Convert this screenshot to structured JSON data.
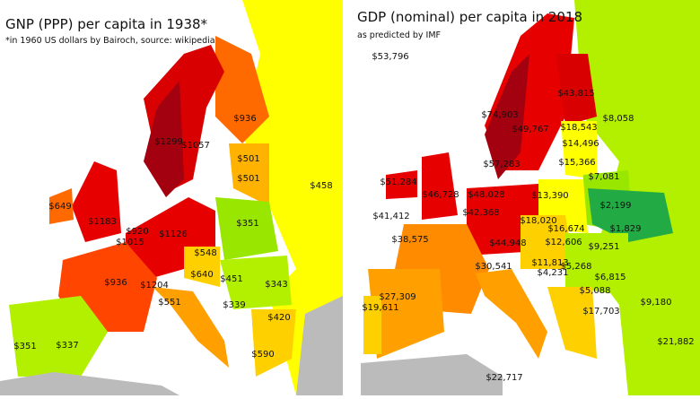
{
  "maps": [
    {
      "title": "GNP (PPP) per capita in 1938*",
      "subtitle": "*in 1960 US dollars by Bairoch, source: wikipedia",
      "labels": [
        "$458",
        "$936",
        "$1299",
        "$1057",
        "$501",
        "$501",
        "$1183",
        "$649",
        "$920",
        "$1015",
        "$1126",
        "$351",
        "$548",
        "$451",
        "$640",
        "$1204",
        "$936",
        "$551",
        "$343",
        "$339",
        "$420",
        "$351",
        "$337",
        "$590"
      ]
    },
    {
      "title": "GDP (nominal) per capita in 2018",
      "subtitle": "as predicted by IMF",
      "labels": [
        "$53,796",
        "$74,903",
        "$49,767",
        "$43,815",
        "$8,058",
        "$18,543",
        "$14,496",
        "$15,366",
        "$7,081",
        "$57,283",
        "$51,284",
        "$46,728",
        "$48,028",
        "$13,390",
        "$2,199",
        "$41,412",
        "$42,368",
        "$18,020",
        "$1,829",
        "$16,674",
        "$12,606",
        "$9,251",
        "$38,575",
        "$44,948",
        "$30,541",
        "$11,813",
        "$5,268",
        "$6,815",
        "$4,231",
        "$5,088",
        "$17,703",
        "$9,180",
        "$27,309",
        "$19,611",
        "$22,717",
        "$21,882"
      ]
    }
  ]
}
